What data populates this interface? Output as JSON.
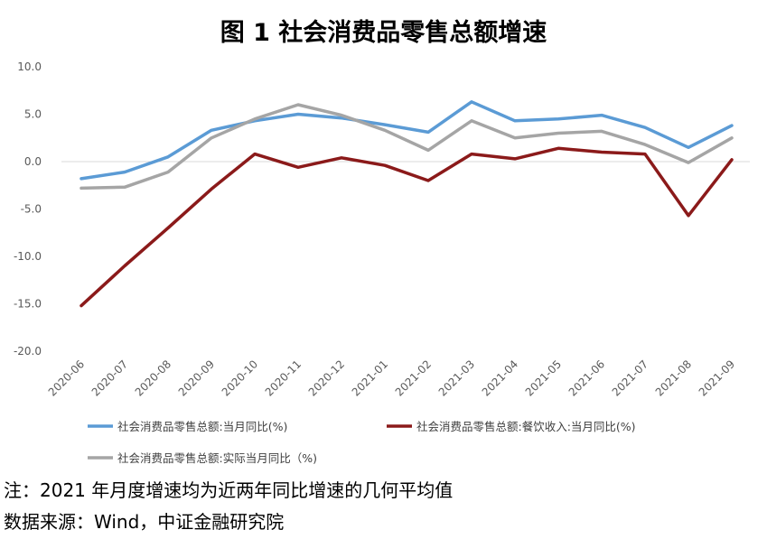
{
  "title": "图 1 社会消费品零售总额增速",
  "notes": {
    "note": "注：2021 年月度增速均为近两年同比增速的几何平均值",
    "source": "数据来源：Wind，中证金融研究院"
  },
  "chart_data": {
    "type": "line",
    "title": "图 1 社会消费品零售总额增速",
    "categories": [
      "2020-06",
      "2020-07",
      "2020-08",
      "2020-09",
      "2020-10",
      "2020-11",
      "2020-12",
      "2021-01",
      "2021-02",
      "2021-03",
      "2021-04",
      "2021-05",
      "2021-06",
      "2021-07",
      "2021-08",
      "2021-09"
    ],
    "ylim": [
      -20,
      10
    ],
    "yticks": [
      10,
      5,
      0,
      -5,
      -10,
      -15,
      -20
    ],
    "ytick_labels": [
      "10.0",
      "5.0",
      "0.0",
      "-5.0",
      "-10.0",
      "-15.0",
      "-20.0"
    ],
    "grid": false,
    "legend_position": "bottom",
    "series": [
      {
        "name": "社会消费品零售总额:当月同比(%)",
        "color": "#5b9bd5",
        "values": [
          -1.8,
          -1.1,
          0.5,
          3.3,
          4.3,
          5.0,
          4.6,
          3.9,
          3.1,
          6.3,
          4.3,
          4.5,
          4.9,
          3.6,
          1.5,
          3.8
        ]
      },
      {
        "name": "社会消费品零售总额:餐饮收入:当月同比(%)",
        "color": "#8b1a1a",
        "values": [
          -15.2,
          -11.0,
          -7.0,
          -2.9,
          0.8,
          -0.6,
          0.4,
          -0.4,
          -2.0,
          0.8,
          0.3,
          1.4,
          1.0,
          0.8,
          -5.7,
          0.2
        ]
      },
      {
        "name": "社会消费品零售总额:实际当月同比（%)",
        "color": "#a5a5a5",
        "values": [
          -2.8,
          -2.7,
          -1.1,
          2.5,
          4.5,
          6.0,
          4.9,
          3.3,
          1.2,
          4.3,
          2.5,
          3.0,
          3.2,
          1.8,
          -0.1,
          2.5
        ]
      }
    ]
  }
}
